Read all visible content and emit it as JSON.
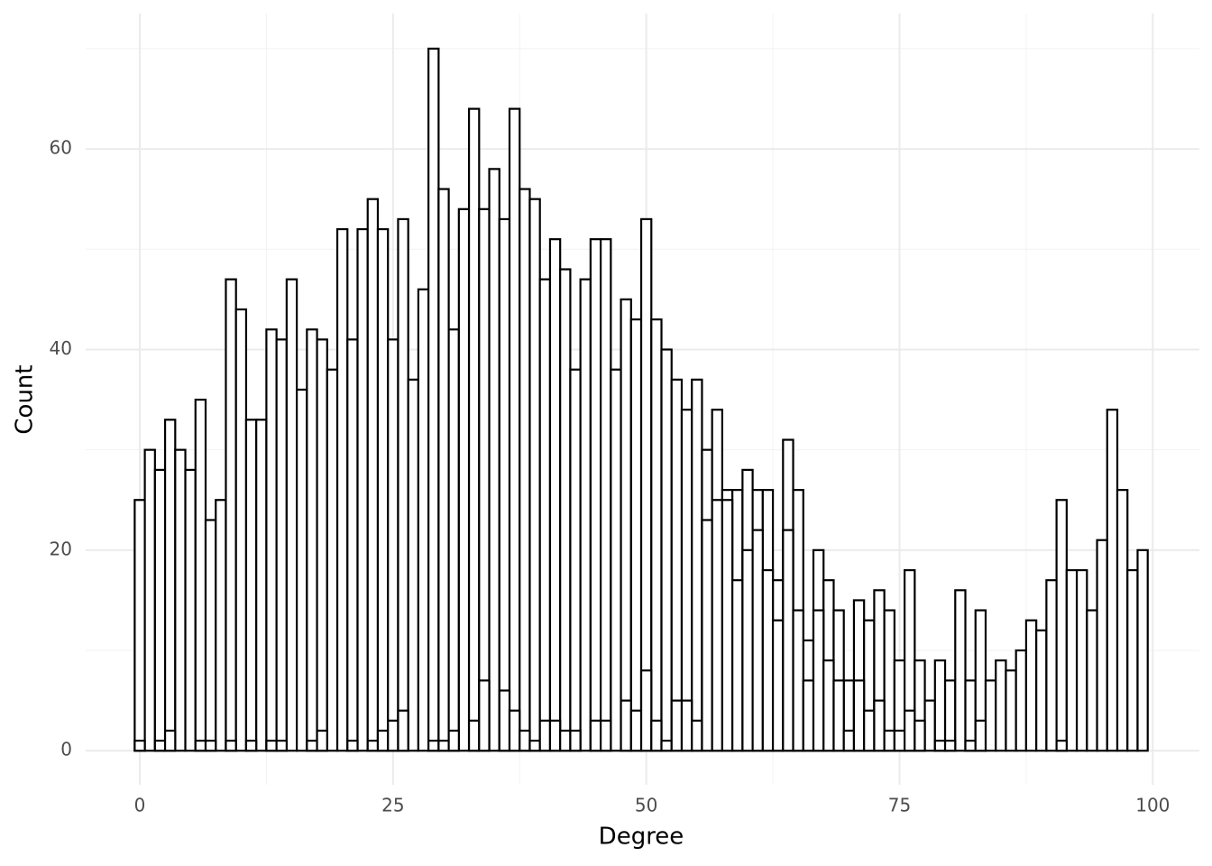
{
  "chart_data": {
    "type": "histogram",
    "x_label": "Degree",
    "y_label": "Count",
    "bins": [
      -0.5,
      0.5,
      1.5,
      2.5,
      3.5,
      4.5,
      5.5,
      6.5,
      7.5,
      8.5,
      9.5,
      10.5,
      11.5,
      12.5,
      13.5,
      14.5,
      15.5,
      16.5,
      17.5,
      18.5,
      19.5,
      20.5,
      21.5,
      22.5,
      23.5,
      24.5,
      25.5,
      26.5,
      27.5,
      28.5,
      29.5,
      30.5,
      31.5,
      32.5,
      33.5,
      34.5,
      35.5,
      36.5,
      37.5,
      38.5,
      39.5,
      40.5,
      41.5,
      42.5,
      43.5,
      44.5,
      45.5,
      46.5,
      47.5,
      48.5,
      49.5,
      50.5,
      51.5,
      52.5,
      53.5,
      54.5,
      55.5,
      56.5,
      57.5,
      58.5,
      59.5,
      60.5,
      61.5,
      62.5,
      63.5,
      64.5,
      65.5,
      66.5,
      67.5,
      68.5,
      69.5,
      70.5,
      71.5,
      72.5,
      73.5,
      74.5,
      75.5,
      76.5,
      77.5,
      78.5,
      79.5,
      80.5,
      81.5,
      82.5,
      83.5,
      84.5,
      85.5,
      86.5,
      87.5,
      88.5,
      89.5,
      90.5,
      91.5,
      92.5,
      93.5,
      94.5,
      95.5,
      96.5,
      97.5,
      98.5,
      99.5
    ],
    "series": [
      {
        "color": "#ffffff",
        "values": [
          25,
          30,
          28,
          33,
          30,
          28,
          35,
          23,
          25,
          47,
          44,
          33,
          33,
          42,
          41,
          47,
          36,
          42,
          41,
          38,
          52,
          41,
          52,
          55,
          52,
          41,
          53,
          37,
          46,
          70,
          56,
          42,
          54,
          64,
          54,
          58,
          53,
          64,
          56,
          55,
          47,
          51,
          48,
          38,
          47,
          51,
          51,
          38,
          45,
          43,
          53,
          43,
          40,
          37,
          34,
          37,
          30,
          34,
          26,
          26,
          28,
          26,
          26,
          17,
          31,
          26,
          11,
          20,
          17,
          14,
          7,
          15,
          13,
          16,
          14,
          9,
          18,
          9,
          5,
          9,
          7,
          16,
          7,
          14,
          7,
          9,
          8,
          10,
          13,
          12,
          17,
          25,
          18,
          18,
          14,
          21,
          34,
          26,
          18,
          20
        ]
      },
      {
        "color": "#ffffff",
        "values": [
          1,
          0,
          1,
          2,
          0,
          0,
          1,
          1,
          0,
          1,
          0,
          1,
          0,
          1,
          1,
          0,
          0,
          1,
          2,
          0,
          0,
          1,
          0,
          1,
          2,
          3,
          4,
          0,
          0,
          1,
          1,
          2,
          0,
          3,
          7,
          0,
          6,
          4,
          2,
          1,
          3,
          3,
          2,
          2,
          0,
          3,
          3,
          0,
          5,
          4,
          8,
          3,
          1,
          5,
          5,
          3,
          23,
          25,
          25,
          17,
          20,
          22,
          18,
          13,
          22,
          14,
          7,
          14,
          9,
          7,
          2,
          7,
          4,
          5,
          2,
          2,
          4,
          3,
          0,
          1,
          1,
          0,
          1,
          3,
          0,
          0,
          0,
          0,
          0,
          0,
          0,
          1,
          0,
          0,
          0,
          0,
          0,
          0,
          0,
          0
        ]
      }
    ],
    "outline_color": "#000000",
    "xlim": [
      -5.34,
      104.6
    ],
    "xticks": [
      0,
      25,
      50,
      75,
      100
    ],
    "ylim": [
      -3.4,
      73.5
    ],
    "yticks": [
      0,
      20,
      40,
      60
    ],
    "grid": true
  }
}
